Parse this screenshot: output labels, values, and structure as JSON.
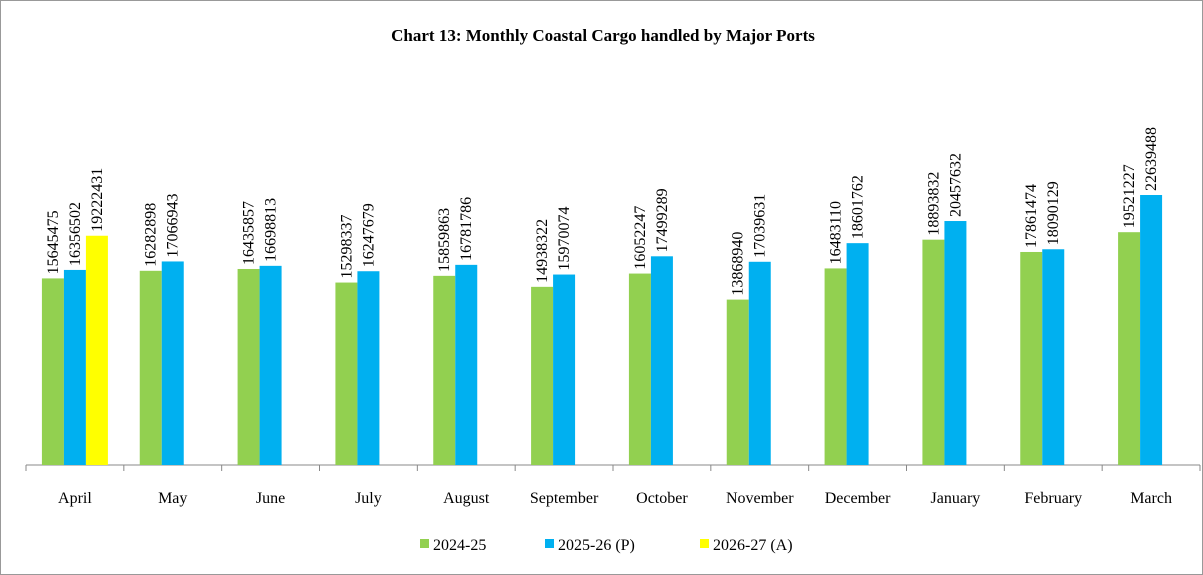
{
  "chart_data": {
    "type": "bar",
    "title": "Chart 13: Monthly Coastal Cargo handled by Major Ports",
    "categories": [
      "April",
      "May",
      "June",
      "July",
      "August",
      "September",
      "October",
      "November",
      "December",
      "January",
      "February",
      "March"
    ],
    "series": [
      {
        "name": "2024-25",
        "color": "#92d050",
        "values": [
          15645475,
          16282898,
          16435857,
          15298337,
          15859863,
          14938322,
          16052247,
          13868940,
          16483110,
          18893832,
          17861474,
          19521227
        ]
      },
      {
        "name": "2025-26 (P)",
        "color": "#00b0f0",
        "values": [
          16356502,
          17066943,
          16698813,
          16247679,
          16781786,
          15970074,
          17499289,
          17039631,
          18601762,
          20457632,
          18090129,
          22639488
        ]
      },
      {
        "name": "2026-27 (A)",
        "color": "#ffff00",
        "values": [
          19222431,
          null,
          null,
          null,
          null,
          null,
          null,
          null,
          null,
          null,
          null,
          null
        ]
      }
    ]
  }
}
